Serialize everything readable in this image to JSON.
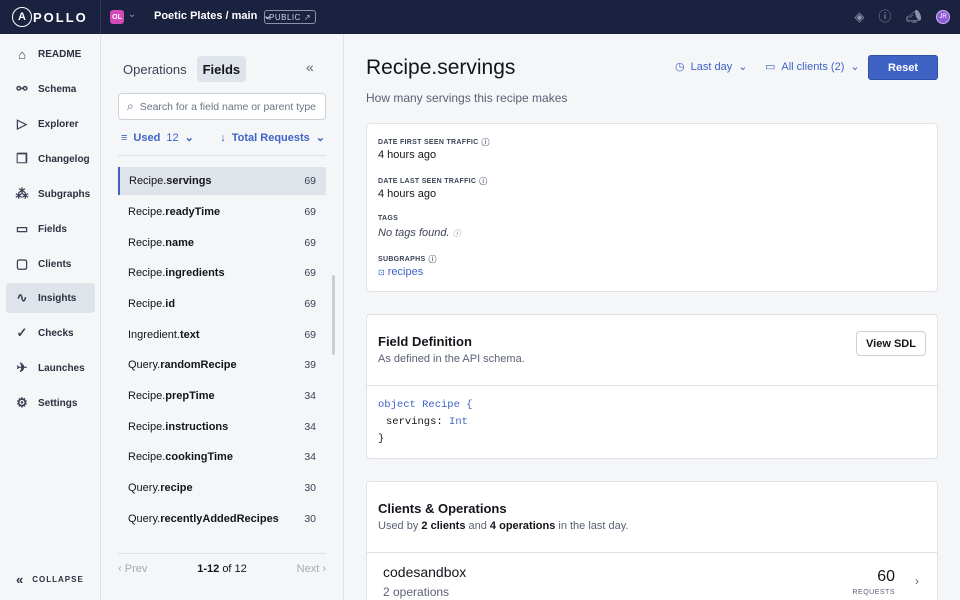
{
  "topbar": {
    "logo": "POLLO",
    "logo_a": "A",
    "org_initials": "OL",
    "graph_name": "Poetic Plates / main",
    "visibility": "PUBLIC",
    "avatar_initials": "JR"
  },
  "nav": {
    "items": [
      {
        "label": "README",
        "icon": "readme-icon"
      },
      {
        "label": "Schema",
        "icon": "schema-icon"
      },
      {
        "label": "Explorer",
        "icon": "explorer-icon"
      },
      {
        "label": "Changelog",
        "icon": "changelog-icon"
      },
      {
        "label": "Subgraphs",
        "icon": "subgraphs-icon"
      },
      {
        "label": "Fields",
        "icon": "fields-icon"
      },
      {
        "label": "Clients",
        "icon": "clients-icon"
      },
      {
        "label": "Insights",
        "icon": "insights-icon",
        "active": true
      },
      {
        "label": "Checks",
        "icon": "checks-icon"
      },
      {
        "label": "Launches",
        "icon": "launches-icon"
      },
      {
        "label": "Settings",
        "icon": "settings-icon"
      }
    ],
    "collapse": "COLLAPSE"
  },
  "list": {
    "tabs": [
      "Operations",
      "Fields"
    ],
    "active_tab": "Fields",
    "search_placeholder": "Search for a field name or parent type",
    "filter_label": "Used",
    "filter_count": "12",
    "sort_label": "Total Requests",
    "rows": [
      {
        "parent": "Recipe.",
        "field": "servings",
        "count": "69"
      },
      {
        "parent": "Recipe.",
        "field": "readyTime",
        "count": "69"
      },
      {
        "parent": "Recipe.",
        "field": "name",
        "count": "69"
      },
      {
        "parent": "Recipe.",
        "field": "ingredients",
        "count": "69"
      },
      {
        "parent": "Recipe.",
        "field": "id",
        "count": "69"
      },
      {
        "parent": "Ingredient.",
        "field": "text",
        "count": "69"
      },
      {
        "parent": "Query.",
        "field": "randomRecipe",
        "count": "39"
      },
      {
        "parent": "Recipe.",
        "field": "prepTime",
        "count": "34"
      },
      {
        "parent": "Recipe.",
        "field": "instructions",
        "count": "34"
      },
      {
        "parent": "Recipe.",
        "field": "cookingTime",
        "count": "34"
      },
      {
        "parent": "Query.",
        "field": "recipe",
        "count": "30"
      },
      {
        "parent": "Query.",
        "field": "recentlyAddedRecipes",
        "count": "30"
      }
    ],
    "pager": {
      "prev": "Prev",
      "range": "1-12",
      "of": "of 12",
      "next": "Next"
    }
  },
  "detail": {
    "type_name": "Recipe.",
    "field_name": "servings",
    "description": "How many servings this recipe makes",
    "time_range": "Last day",
    "clients_filter": "All clients (2)",
    "reset": "Reset",
    "meta": {
      "first_seen_label": "DATE FIRST SEEN TRAFFIC",
      "first_seen_value": "4 hours ago",
      "last_seen_label": "DATE LAST SEEN TRAFFIC",
      "last_seen_value": "4 hours ago",
      "tags_label": "TAGS",
      "tags_value": "No tags found.",
      "subgraphs_label": "SUBGRAPHS",
      "subgraphs_value": "recipes"
    },
    "definition": {
      "title": "Field Definition",
      "subtitle": "As defined in the API schema.",
      "button": "View SDL",
      "code_line1_kw": "object Recipe {",
      "code_field": "servings:",
      "code_type": "Int",
      "code_close": "}"
    },
    "clients": {
      "title": "Clients & Operations",
      "sub_pre": "Used by ",
      "sub_clients": "2 clients",
      "sub_mid": " and ",
      "sub_ops": "4 operations",
      "sub_post": " in the last day.",
      "first_client": "codesandbox",
      "first_client_ops": "2 operations",
      "first_client_requests": "60",
      "requests_label": "REQUESTS"
    }
  },
  "colors": {
    "accent": "#3f63c5",
    "topbar": "#1b2240",
    "org": "#d24bb8",
    "avatar": "#8e5bd6"
  }
}
